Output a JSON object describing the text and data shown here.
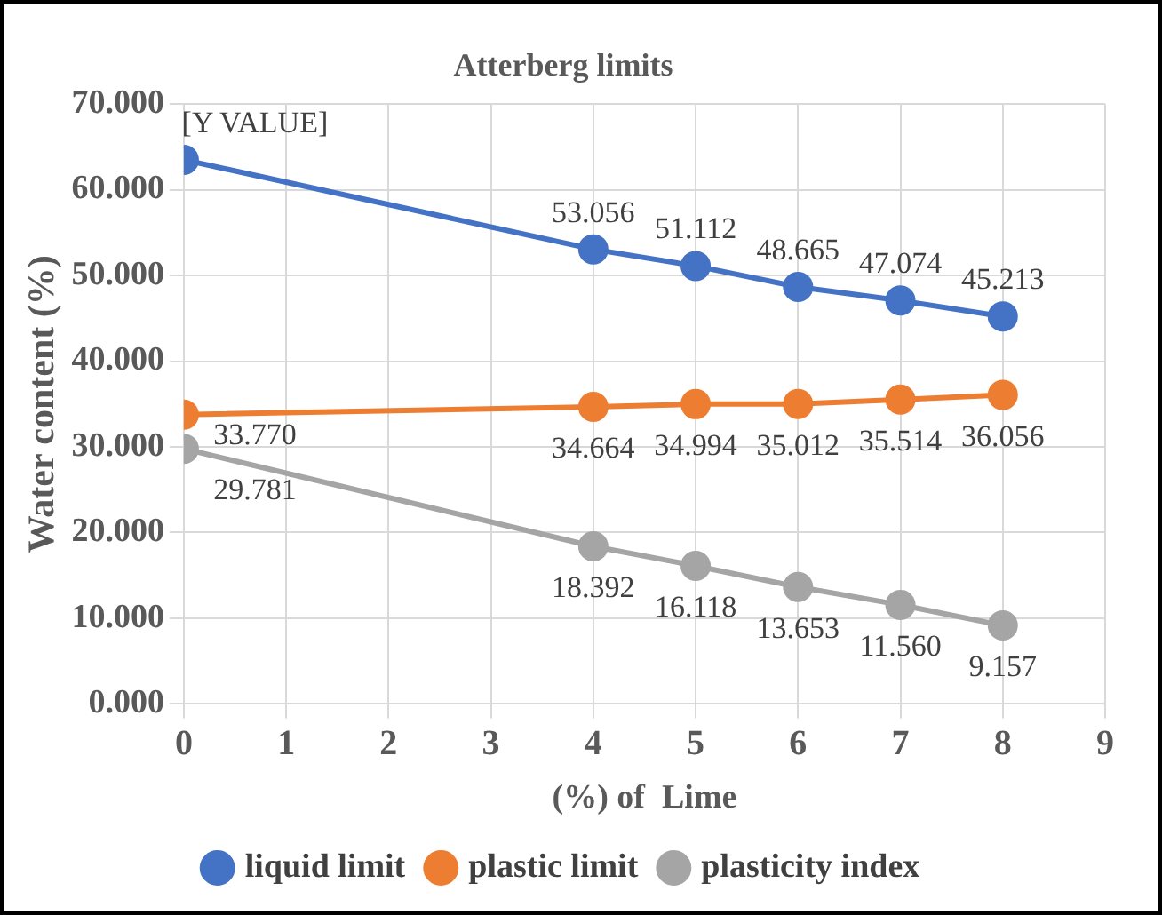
{
  "chart_data": {
    "type": "line",
    "title": "Atterberg limits",
    "xlabel": "(%) of  Lime",
    "ylabel": "Water content (%)",
    "x": [
      0,
      4,
      5,
      6,
      7,
      8
    ],
    "series": [
      {
        "name": "liquid limit",
        "color": "#4472c4",
        "values": [
          63.5,
          53.056,
          51.112,
          48.665,
          47.074,
          45.213
        ],
        "value_labels": [
          "[Y VALUE]",
          "53.056",
          "51.112",
          "48.665",
          "47.074",
          "45.213"
        ]
      },
      {
        "name": "plastic limit",
        "color": "#ed7d31",
        "values": [
          33.77,
          34.664,
          34.994,
          35.012,
          35.514,
          36.056
        ],
        "value_labels": [
          "33.770",
          "34.664",
          "34.994",
          "35.012",
          "35.514",
          "36.056"
        ]
      },
      {
        "name": "plasticity index",
        "color": "#a5a5a5",
        "values": [
          29.781,
          18.392,
          16.118,
          13.653,
          11.56,
          9.157
        ],
        "value_labels": [
          "29.781",
          "18.392",
          "16.118",
          "13.653",
          "11.560",
          "9.157"
        ]
      }
    ],
    "xlim": [
      0,
      9
    ],
    "xticks": [
      0,
      1,
      2,
      3,
      4,
      5,
      6,
      7,
      8,
      9
    ],
    "ylim": [
      0,
      70
    ],
    "yticks": [
      {
        "value": 0,
        "label": "0.000"
      },
      {
        "value": 10,
        "label": "10.000"
      },
      {
        "value": 20,
        "label": "20.000"
      },
      {
        "value": 30,
        "label": "30.000"
      },
      {
        "value": 40,
        "label": "40.000"
      },
      {
        "value": 50,
        "label": "50.000"
      },
      {
        "value": 60,
        "label": "60.000"
      },
      {
        "value": 70,
        "label": "70.000"
      }
    ],
    "grid": true,
    "legend": "bottom",
    "marker": "circle",
    "line_style": "solid"
  }
}
